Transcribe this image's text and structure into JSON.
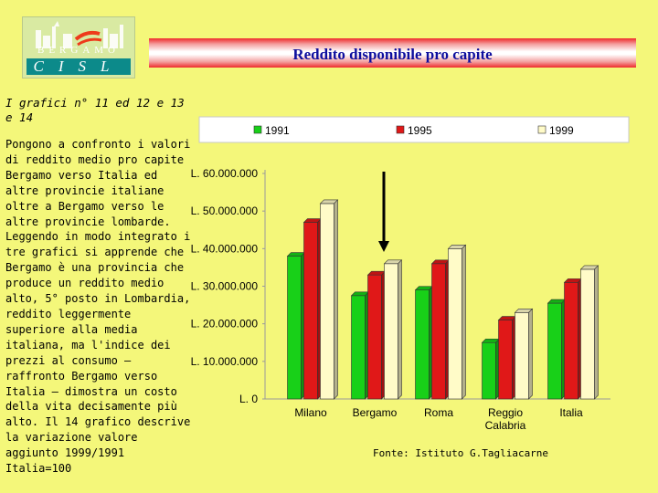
{
  "logo": {
    "top_text": "BERGAMO",
    "bottom_text": "CISL"
  },
  "title": "Reddito disponibile pro capite",
  "left_panel": {
    "heading": "I grafici n° 11 ed 12 e 13 e 14",
    "body": "Pongono a confronto i valori di reddito medio pro capite Bergamo verso Italia ed altre provincie italiane oltre a Bergamo verso le altre provincie lombarde. Leggendo in modo integrato i tre grafici si apprende che Bergamo è una provincia che produce un reddito medio alto, 5° posto in Lombardia, reddito leggermente superiore alla media italiana, ma l'indice dei prezzi al consumo – raffronto Bergamo verso Italia – dimostra un costo della vita decisamente più alto. Il 14 grafico descrive la variazione valore aggiunto 1999/1991 Italia=100"
  },
  "source": "Fonte: Istituto G.Tagliacarne",
  "colors": {
    "1991": "#18d018",
    "1995": "#e01818",
    "1999": "#fffbc8",
    "background": "#f4f77a",
    "title": "#0d0e9e",
    "arrow": "#000000"
  },
  "chart_data": {
    "type": "bar",
    "title": "Reddito disponibile pro capite",
    "categories": [
      "Milano",
      "Bergamo",
      "Roma",
      "Reggio Calabria",
      "Italia"
    ],
    "category_labels": [
      [
        "Milano"
      ],
      [
        "Bergamo"
      ],
      [
        "Roma"
      ],
      [
        "Reggio",
        "Calabria"
      ],
      [
        "Italia"
      ]
    ],
    "series": [
      {
        "name": "1991",
        "values": [
          38000000,
          27500000,
          29000000,
          15000000,
          25500000
        ]
      },
      {
        "name": "1995",
        "values": [
          47000000,
          33000000,
          36000000,
          21000000,
          31000000
        ]
      },
      {
        "name": "1999",
        "values": [
          52000000,
          36000000,
          40000000,
          23000000,
          34500000
        ]
      }
    ],
    "ylim": [
      0,
      60000000
    ],
    "y_ticks": [
      0,
      10000000,
      20000000,
      30000000,
      40000000,
      50000000,
      60000000
    ],
    "y_tick_labels": [
      "L. 0",
      "L. 10.000.000",
      "L. 20.000.000",
      "L. 30.000.000",
      "L. 40.000.000",
      "L. 50.000.000",
      "L. 60.000.000"
    ],
    "xlabel": "",
    "ylabel": "",
    "grid": false,
    "legend_position": "top",
    "three_d": true,
    "annotation": "arrow pointing down to Bergamo"
  }
}
